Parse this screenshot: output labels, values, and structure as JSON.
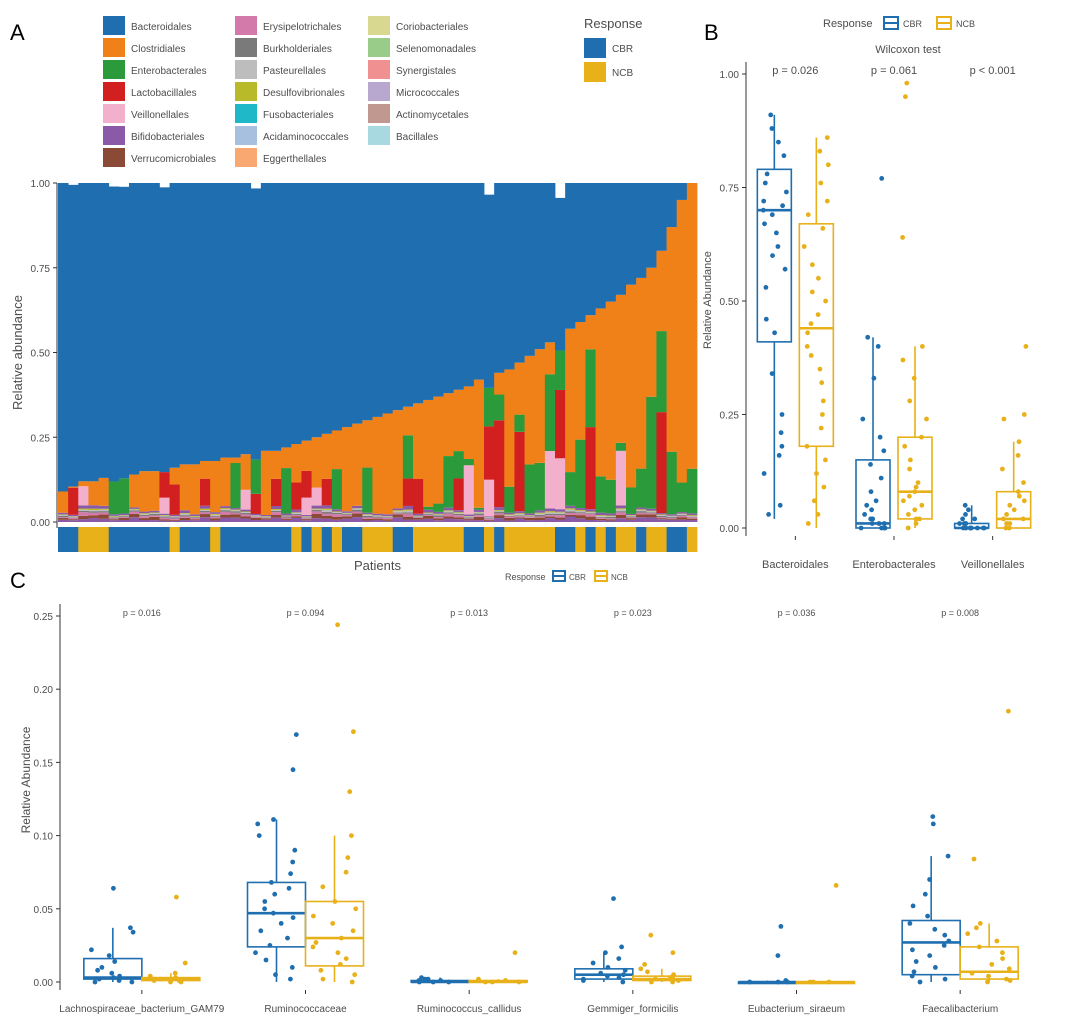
{
  "colors": {
    "CBR": "#1f6fb0",
    "NCB": "#e8b11a",
    "order": {
      "Bacteroidales": "#1f6fb0",
      "Clostridiales": "#f08018",
      "Enterobacterales": "#2a9a3a",
      "Lactobacillales": "#d21f1f",
      "Veillonellales": "#f2b0cc",
      "Bifidobacteriales": "#8a5aa8",
      "Verrucomicrobiales": "#8b4a35",
      "Erysipelotrichales": "#d47aaa",
      "Burkholderiales": "#7a7a7a",
      "Pasteurellales": "#bdbdbd",
      "Desulfovibrionales": "#b8ba2a",
      "Fusobacteriales": "#1fb8c8",
      "Acidaminococcales": "#a8c0e0",
      "Eggerthellales": "#f8a870",
      "Coriobacteriales": "#d8d890",
      "Selenomonadales": "#98cc88",
      "Synergistales": "#f09090",
      "Micrococcales": "#b8a8d0",
      "Actinomycetales": "#c09890",
      "Bacillales": "#a8d8e0"
    }
  },
  "panel_labels": {
    "a": "A",
    "b": "B",
    "c": "C"
  },
  "chart_data": [
    {
      "id": "A",
      "type": "bar",
      "stacked": true,
      "title": "",
      "xlabel": "Patients",
      "ylabel": "Relative abundance",
      "ylim": [
        0,
        1
      ],
      "yticks": [
        "0.00",
        "0.25",
        "0.50",
        "0.75",
        "1.00"
      ],
      "legend_orders_title": "",
      "legend_orders": [
        "Bacteroidales",
        "Clostridiales",
        "Enterobacterales",
        "Lactobacillales",
        "Veillonellales",
        "Bifidobacteriales",
        "Verrucomicrobiales",
        "Erysipelotrichales",
        "Burkholderiales",
        "Pasteurellales",
        "Desulfovibrionales",
        "Fusobacteriales",
        "Acidaminococcales",
        "Eggerthellales",
        "Coriobacteriales",
        "Selenomonadales",
        "Synergistales",
        "Micrococcales",
        "Actinomycetales",
        "Bacillales"
      ],
      "legend_response_title": "Response",
      "legend_response": [
        "CBR",
        "NCB"
      ],
      "n_patients": 63,
      "bacteroidales_bottom": [
        0.09,
        0.11,
        0.12,
        0.12,
        0.13,
        0.13,
        0.14,
        0.14,
        0.15,
        0.15,
        0.16,
        0.16,
        0.17,
        0.17,
        0.18,
        0.18,
        0.19,
        0.19,
        0.2,
        0.2,
        0.21,
        0.21,
        0.22,
        0.23,
        0.24,
        0.25,
        0.26,
        0.27,
        0.28,
        0.29,
        0.3,
        0.31,
        0.32,
        0.33,
        0.34,
        0.35,
        0.36,
        0.37,
        0.38,
        0.39,
        0.4,
        0.42,
        0.43,
        0.44,
        0.45,
        0.47,
        0.49,
        0.51,
        0.53,
        0.55,
        0.57,
        0.59,
        0.61,
        0.63,
        0.65,
        0.67,
        0.7,
        0.72,
        0.75,
        0.8,
        0.87,
        0.95,
        1.0
      ],
      "series_note": "per-patient composition: Bacteroidales above; below it Clostridiales, Enterobacterales, Lactobacillales, Veillonellales, Bifidobacteriales and minor orders",
      "response_by_patient": [
        "CBR",
        "CBR",
        "NCB",
        "NCB",
        "NCB",
        "CBR",
        "CBR",
        "CBR",
        "CBR",
        "CBR",
        "CBR",
        "NCB",
        "CBR",
        "CBR",
        "CBR",
        "NCB",
        "CBR",
        "CBR",
        "CBR",
        "CBR",
        "CBR",
        "CBR",
        "CBR",
        "NCB",
        "CBR",
        "NCB",
        "CBR",
        "NCB",
        "CBR",
        "CBR",
        "NCB",
        "NCB",
        "NCB",
        "CBR",
        "CBR",
        "NCB",
        "NCB",
        "NCB",
        "NCB",
        "NCB",
        "CBR",
        "CBR",
        "NCB",
        "CBR",
        "NCB",
        "NCB",
        "NCB",
        "NCB",
        "NCB",
        "CBR",
        "CBR",
        "NCB",
        "CBR",
        "NCB",
        "CBR",
        "NCB",
        "NCB",
        "CBR",
        "NCB",
        "NCB",
        "CBR",
        "CBR",
        "NCB"
      ]
    },
    {
      "id": "B",
      "type": "box",
      "title": "Wilcoxon test",
      "ylabel": "Relative Abundance",
      "ylim": [
        0,
        1
      ],
      "yticks": [
        "0.00",
        "0.25",
        "0.50",
        "0.75",
        "1.00"
      ],
      "legend_title": "Response",
      "legend": [
        "CBR",
        "NCB"
      ],
      "categories": [
        "Bacteroidales",
        "Enterobacterales",
        "Veillonellales"
      ],
      "pvalues": [
        "p = 0.026",
        "p = 0.061",
        "p < 0.001"
      ],
      "series": [
        {
          "name": "CBR",
          "boxes": [
            {
              "min": 0.02,
              "q1": 0.41,
              "median": 0.7,
              "q3": 0.79,
              "max": 0.91,
              "points": [
                0.91,
                0.88,
                0.85,
                0.82,
                0.78,
                0.76,
                0.74,
                0.72,
                0.71,
                0.7,
                0.69,
                0.67,
                0.65,
                0.62,
                0.6,
                0.57,
                0.53,
                0.46,
                0.43,
                0.34,
                0.25,
                0.21,
                0.18,
                0.16,
                0.12,
                0.05,
                0.03
              ]
            },
            {
              "min": 0.0,
              "q1": 0.0,
              "median": 0.01,
              "q3": 0.15,
              "max": 0.42,
              "points": [
                0.77,
                0.42,
                0.4,
                0.33,
                0.24,
                0.2,
                0.17,
                0.14,
                0.11,
                0.08,
                0.06,
                0.05,
                0.04,
                0.03,
                0.02,
                0.02,
                0.01,
                0.01,
                0.01,
                0.0,
                0.0,
                0.0,
                0.0
              ]
            },
            {
              "min": 0.0,
              "q1": 0.0,
              "median": 0.0,
              "q3": 0.01,
              "max": 0.05,
              "points": [
                0.05,
                0.04,
                0.03,
                0.02,
                0.02,
                0.01,
                0.01,
                0.01,
                0.0,
                0.0,
                0.0,
                0.0,
                0.0,
                0.0,
                0.0,
                0.0
              ]
            }
          ]
        },
        {
          "name": "NCB",
          "boxes": [
            {
              "min": 0.0,
              "q1": 0.18,
              "median": 0.44,
              "q3": 0.67,
              "max": 0.86,
              "points": [
                0.86,
                0.83,
                0.8,
                0.76,
                0.72,
                0.69,
                0.66,
                0.62,
                0.58,
                0.55,
                0.52,
                0.5,
                0.47,
                0.45,
                0.43,
                0.4,
                0.38,
                0.35,
                0.32,
                0.28,
                0.25,
                0.22,
                0.18,
                0.15,
                0.12,
                0.09,
                0.06,
                0.03,
                0.01
              ]
            },
            {
              "min": 0.0,
              "q1": 0.02,
              "median": 0.08,
              "q3": 0.2,
              "max": 0.4,
              "points": [
                0.98,
                0.95,
                0.64,
                0.4,
                0.37,
                0.33,
                0.28,
                0.24,
                0.2,
                0.18,
                0.15,
                0.13,
                0.1,
                0.09,
                0.08,
                0.07,
                0.06,
                0.05,
                0.04,
                0.03,
                0.02,
                0.02,
                0.01,
                0.0
              ]
            },
            {
              "min": 0.0,
              "q1": 0.0,
              "median": 0.02,
              "q3": 0.08,
              "max": 0.19,
              "points": [
                0.4,
                0.25,
                0.24,
                0.19,
                0.16,
                0.13,
                0.1,
                0.08,
                0.07,
                0.06,
                0.05,
                0.04,
                0.03,
                0.02,
                0.02,
                0.01,
                0.01,
                0.0,
                0.0
              ]
            }
          ]
        }
      ]
    },
    {
      "id": "C",
      "type": "box",
      "title": "",
      "ylabel": "Relative Abundance",
      "ylim": [
        0,
        0.25
      ],
      "yticks": [
        "0.00",
        "0.05",
        "0.10",
        "0.15",
        "0.20",
        "0.25"
      ],
      "legend_title": "Response",
      "legend": [
        "CBR",
        "NCB"
      ],
      "categories": [
        "Lachnospiraceae_bacterium_GAM79",
        "Ruminococcaceae",
        "Ruminococcus_callidus",
        "Gemmiger_formicilis",
        "Eubacterium_siraeum",
        "Faecalibacterium"
      ],
      "pvalues": [
        "p = 0.016",
        "p = 0.094",
        "p = 0.013",
        "p = 0.023",
        "p = 0.036",
        "p = 0.008"
      ],
      "series": [
        {
          "name": "CBR",
          "boxes": [
            {
              "min": 0.0,
              "q1": 0.002,
              "median": 0.003,
              "q3": 0.016,
              "max": 0.037,
              "points": [
                0.064,
                0.037,
                0.034,
                0.022,
                0.018,
                0.014,
                0.01,
                0.008,
                0.006,
                0.004,
                0.003,
                0.002,
                0.001,
                0.0,
                0.0
              ]
            },
            {
              "min": 0.0,
              "q1": 0.024,
              "median": 0.047,
              "q3": 0.068,
              "max": 0.111,
              "points": [
                0.169,
                0.145,
                0.111,
                0.108,
                0.1,
                0.09,
                0.082,
                0.074,
                0.068,
                0.064,
                0.06,
                0.055,
                0.05,
                0.047,
                0.044,
                0.04,
                0.035,
                0.03,
                0.025,
                0.02,
                0.015,
                0.01,
                0.005,
                0.002
              ]
            },
            {
              "min": 0.0,
              "q1": 0.0,
              "median": 0.0,
              "q3": 0.001,
              "max": 0.003,
              "points": [
                0.003,
                0.002,
                0.002,
                0.001,
                0.001,
                0.0,
                0.0,
                0.0
              ]
            },
            {
              "min": 0.0,
              "q1": 0.002,
              "median": 0.005,
              "q3": 0.009,
              "max": 0.02,
              "points": [
                0.057,
                0.024,
                0.02,
                0.016,
                0.013,
                0.01,
                0.008,
                0.006,
                0.005,
                0.004,
                0.003,
                0.002,
                0.001,
                0.0
              ]
            },
            {
              "min": 0.0,
              "q1": 0.0,
              "median": 0.0,
              "q3": 0.0,
              "max": 0.001,
              "points": [
                0.038,
                0.018,
                0.001,
                0.0,
                0.0,
                0.0
              ]
            },
            {
              "min": 0.0,
              "q1": 0.005,
              "median": 0.027,
              "q3": 0.042,
              "max": 0.086,
              "points": [
                0.113,
                0.108,
                0.086,
                0.07,
                0.06,
                0.052,
                0.045,
                0.04,
                0.036,
                0.032,
                0.028,
                0.025,
                0.022,
                0.018,
                0.014,
                0.01,
                0.007,
                0.004,
                0.002,
                0.0
              ]
            }
          ]
        },
        {
          "name": "NCB",
          "boxes": [
            {
              "min": 0.0,
              "q1": 0.001,
              "median": 0.002,
              "q3": 0.003,
              "max": 0.006,
              "points": [
                0.058,
                0.013,
                0.006,
                0.004,
                0.003,
                0.002,
                0.002,
                0.001,
                0.001,
                0.0,
                0.0
              ]
            },
            {
              "min": 0.0,
              "q1": 0.011,
              "median": 0.03,
              "q3": 0.055,
              "max": 0.1,
              "points": [
                0.244,
                0.171,
                0.13,
                0.1,
                0.085,
                0.075,
                0.065,
                0.055,
                0.05,
                0.045,
                0.04,
                0.035,
                0.03,
                0.027,
                0.024,
                0.02,
                0.016,
                0.012,
                0.008,
                0.005,
                0.002,
                0.0
              ]
            },
            {
              "min": 0.0,
              "q1": 0.0,
              "median": 0.0,
              "q3": 0.001,
              "max": 0.002,
              "points": [
                0.02,
                0.002,
                0.001,
                0.0,
                0.0,
                0.0
              ]
            },
            {
              "min": 0.0,
              "q1": 0.001,
              "median": 0.002,
              "q3": 0.004,
              "max": 0.009,
              "points": [
                0.032,
                0.02,
                0.012,
                0.009,
                0.007,
                0.005,
                0.004,
                0.003,
                0.002,
                0.001,
                0.0,
                0.0
              ]
            },
            {
              "min": 0.0,
              "q1": 0.0,
              "median": 0.0,
              "q3": 0.0,
              "max": 0.0,
              "points": [
                0.066,
                0.0,
                0.0,
                0.0
              ]
            },
            {
              "min": 0.0,
              "q1": 0.002,
              "median": 0.007,
              "q3": 0.024,
              "max": 0.04,
              "points": [
                0.185,
                0.084,
                0.04,
                0.037,
                0.033,
                0.028,
                0.024,
                0.02,
                0.016,
                0.012,
                0.009,
                0.006,
                0.004,
                0.002,
                0.001,
                0.0
              ]
            }
          ]
        }
      ]
    }
  ]
}
